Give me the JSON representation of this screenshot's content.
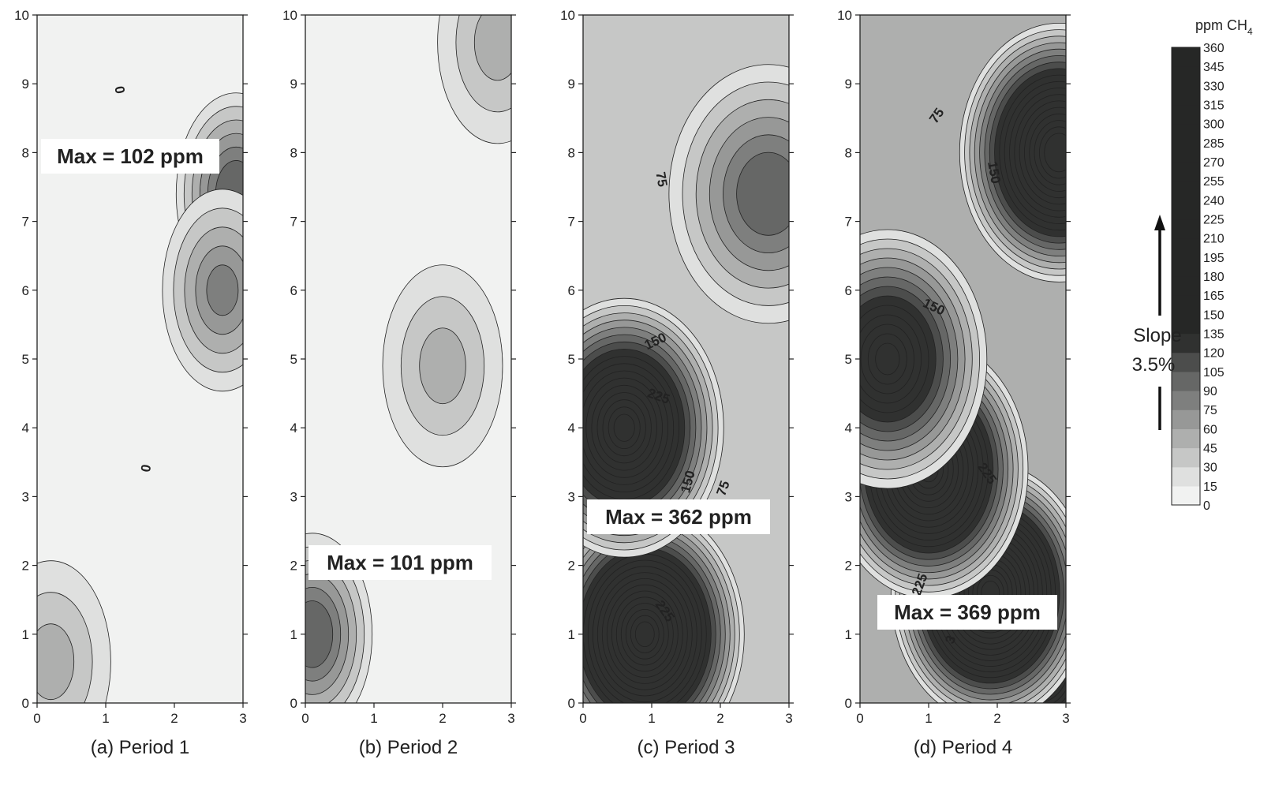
{
  "chart_data": [
    {
      "type": "heatmap",
      "title": "(a) Period 1",
      "annotation": "Max = 102 ppm",
      "max_ppm": 102,
      "contour_labels": [
        "0",
        "0"
      ],
      "xlim": [
        0,
        3
      ],
      "ylim": [
        0,
        10
      ],
      "x_ticks": [
        "0",
        "1",
        "2",
        "3"
      ],
      "y_ticks": [
        "0",
        "1",
        "2",
        "3",
        "4",
        "5",
        "6",
        "7",
        "8",
        "9",
        "10"
      ],
      "hotspots": [
        {
          "x": 2.9,
          "y": 7.4,
          "ppm": 100
        },
        {
          "x": 2.7,
          "y": 6.0,
          "ppm": 80
        },
        {
          "x": 0.2,
          "y": 0.6,
          "ppm": 45
        }
      ]
    },
    {
      "type": "heatmap",
      "title": "(b) Period 2",
      "annotation": "Max = 101 ppm",
      "max_ppm": 101,
      "contour_labels": [],
      "xlim": [
        0,
        3
      ],
      "ylim": [
        0,
        10
      ],
      "x_ticks": [
        "0",
        "1",
        "2",
        "3"
      ],
      "y_ticks": [
        "0",
        "1",
        "2",
        "3",
        "4",
        "5",
        "6",
        "7",
        "8",
        "9",
        "10"
      ],
      "hotspots": [
        {
          "x": 0.1,
          "y": 1.0,
          "ppm": 101
        },
        {
          "x": 2.0,
          "y": 4.9,
          "ppm": 50
        },
        {
          "x": 2.8,
          "y": 9.6,
          "ppm": 45
        }
      ]
    },
    {
      "type": "heatmap",
      "title": "(c) Period 3",
      "annotation": "Max = 362 ppm",
      "max_ppm": 362,
      "contour_labels": [
        "75",
        "150",
        "225",
        "150",
        "75",
        "225"
      ],
      "xlim": [
        0,
        3
      ],
      "ylim": [
        0,
        10
      ],
      "x_ticks": [
        "0",
        "1",
        "2",
        "3"
      ],
      "y_ticks": [
        "0",
        "1",
        "2",
        "3",
        "4",
        "5",
        "6",
        "7",
        "8",
        "9",
        "10"
      ],
      "hotspots": [
        {
          "x": 0.05,
          "y": 3.4,
          "ppm": 362
        },
        {
          "x": 0.9,
          "y": 1.0,
          "ppm": 300
        },
        {
          "x": 0.6,
          "y": 4.0,
          "ppm": 260
        },
        {
          "x": 2.7,
          "y": 7.4,
          "ppm": 100
        }
      ]
    },
    {
      "type": "heatmap",
      "title": "(d) Period 4",
      "annotation": "Max = 369 ppm",
      "max_ppm": 369,
      "contour_labels": [
        "75",
        "150",
        "150",
        "225",
        "225",
        "3"
      ],
      "xlim": [
        0,
        3
      ],
      "ylim": [
        0,
        10
      ],
      "x_ticks": [
        "0",
        "1",
        "2",
        "3"
      ],
      "y_ticks": [
        "0",
        "1",
        "2",
        "3",
        "4",
        "5",
        "6",
        "7",
        "8",
        "9",
        "10"
      ],
      "hotspots": [
        {
          "x": 2.6,
          "y": 0.6,
          "ppm": 369
        },
        {
          "x": 1.9,
          "y": 1.6,
          "ppm": 330
        },
        {
          "x": 1.0,
          "y": 3.4,
          "ppm": 290
        },
        {
          "x": 2.9,
          "y": 8.0,
          "ppm": 280
        },
        {
          "x": 0.4,
          "y": 5.0,
          "ppm": 200
        }
      ]
    }
  ],
  "colorbar": {
    "title_prefix": "ppm CH",
    "title_subscript": "4",
    "levels": [
      "0",
      "15",
      "30",
      "45",
      "60",
      "75",
      "90",
      "105",
      "120",
      "135",
      "150",
      "165",
      "180",
      "195",
      "210",
      "225",
      "240",
      "255",
      "270",
      "285",
      "300",
      "315",
      "330",
      "345",
      "360"
    ],
    "band_colors": [
      "#f1f2f1",
      "#dfe0df",
      "#c6c7c6",
      "#aeafae",
      "#979897",
      "#7e7f7e",
      "#666766",
      "#4c4d4c",
      "#303130"
    ]
  },
  "slope": {
    "line1": "Slope",
    "line2": "3.5%"
  }
}
